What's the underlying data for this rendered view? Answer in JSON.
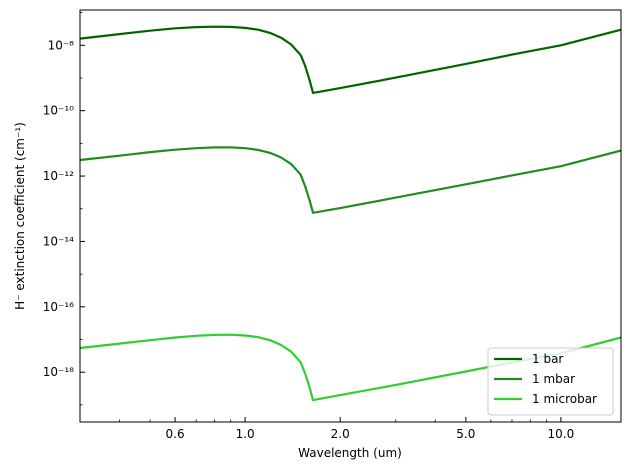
{
  "chart_data": {
    "type": "line",
    "xlabel": "Wavelength (um)",
    "ylabel": "H⁻ extinction coefficient (cm⁻¹)",
    "xscale": "log",
    "yscale": "log",
    "xlim": [
      0.3,
      15.5
    ],
    "ylim": [
      3e-20,
      1.2e-07
    ],
    "x_ticks": [
      0.6,
      1.0,
      2.0,
      5.0,
      10.0
    ],
    "x_tick_labels": [
      "0.6",
      "1.0",
      "2.0",
      "5.0",
      "10.0"
    ],
    "y_ticks": [
      1e-18,
      1e-16,
      1e-14,
      1e-12,
      1e-10,
      1e-08
    ],
    "y_tick_labels": [
      "10⁻¹⁸",
      "10⁻¹⁶",
      "10⁻¹⁴",
      "10⁻¹²",
      "10⁻¹⁰",
      "10⁻⁸"
    ],
    "grid": false,
    "legend_position": "lower-right",
    "series": [
      {
        "name": "1 bar",
        "color": "#006400",
        "x": [
          0.3,
          0.4,
          0.5,
          0.6,
          0.7,
          0.8,
          0.9,
          1.0,
          1.1,
          1.2,
          1.3,
          1.4,
          1.5,
          1.55,
          1.6,
          1.64,
          2.0,
          3.0,
          5.0,
          7.0,
          10.0,
          15.5
        ],
        "y": [
          1.6e-08,
          2.2e-08,
          2.8e-08,
          3.3e-08,
          3.6e-08,
          3.7e-08,
          3.65e-08,
          3.4e-08,
          3e-08,
          2.4e-08,
          1.7e-08,
          1.05e-08,
          5e-09,
          2.3e-09,
          8.5e-10,
          3.5e-10,
          4.9e-10,
          1.03e-09,
          2.7e-09,
          5.2e-09,
          1e-08,
          3e-08
        ]
      },
      {
        "name": "1 mbar",
        "color": "#228B22",
        "x": [
          0.3,
          0.4,
          0.5,
          0.6,
          0.7,
          0.8,
          0.9,
          1.0,
          1.1,
          1.2,
          1.3,
          1.4,
          1.5,
          1.55,
          1.6,
          1.64,
          2.0,
          3.0,
          5.0,
          7.0,
          10.0,
          15.5
        ],
        "y": [
          3.1e-12,
          4.2e-12,
          5.4e-12,
          6.4e-12,
          7.1e-12,
          7.5e-12,
          7.5e-12,
          7.1e-12,
          6.3e-12,
          5.1e-12,
          3.7e-12,
          2.3e-12,
          1.1e-12,
          4.8e-13,
          1.8e-13,
          7.5e-14,
          1.05e-13,
          2.2e-13,
          5.6e-13,
          1.05e-12,
          2e-12,
          6e-12
        ]
      },
      {
        "name": "1 microbar",
        "color": "#32CD32",
        "x": [
          0.3,
          0.4,
          0.5,
          0.6,
          0.7,
          0.8,
          0.9,
          1.0,
          1.1,
          1.2,
          1.3,
          1.4,
          1.5,
          1.55,
          1.6,
          1.64,
          2.0,
          3.0,
          5.0,
          7.0,
          10.0,
          15.5
        ],
        "y": [
          5.5e-18,
          7.5e-18,
          9.5e-18,
          1.15e-17,
          1.3e-17,
          1.38e-17,
          1.4e-17,
          1.33e-17,
          1.18e-17,
          9.5e-18,
          6.8e-18,
          4.2e-18,
          2e-18,
          9e-19,
          3.4e-19,
          1.4e-19,
          2e-19,
          4.1e-19,
          1.05e-18,
          2e-18,
          3.8e-18,
          1.15e-17
        ]
      }
    ]
  }
}
